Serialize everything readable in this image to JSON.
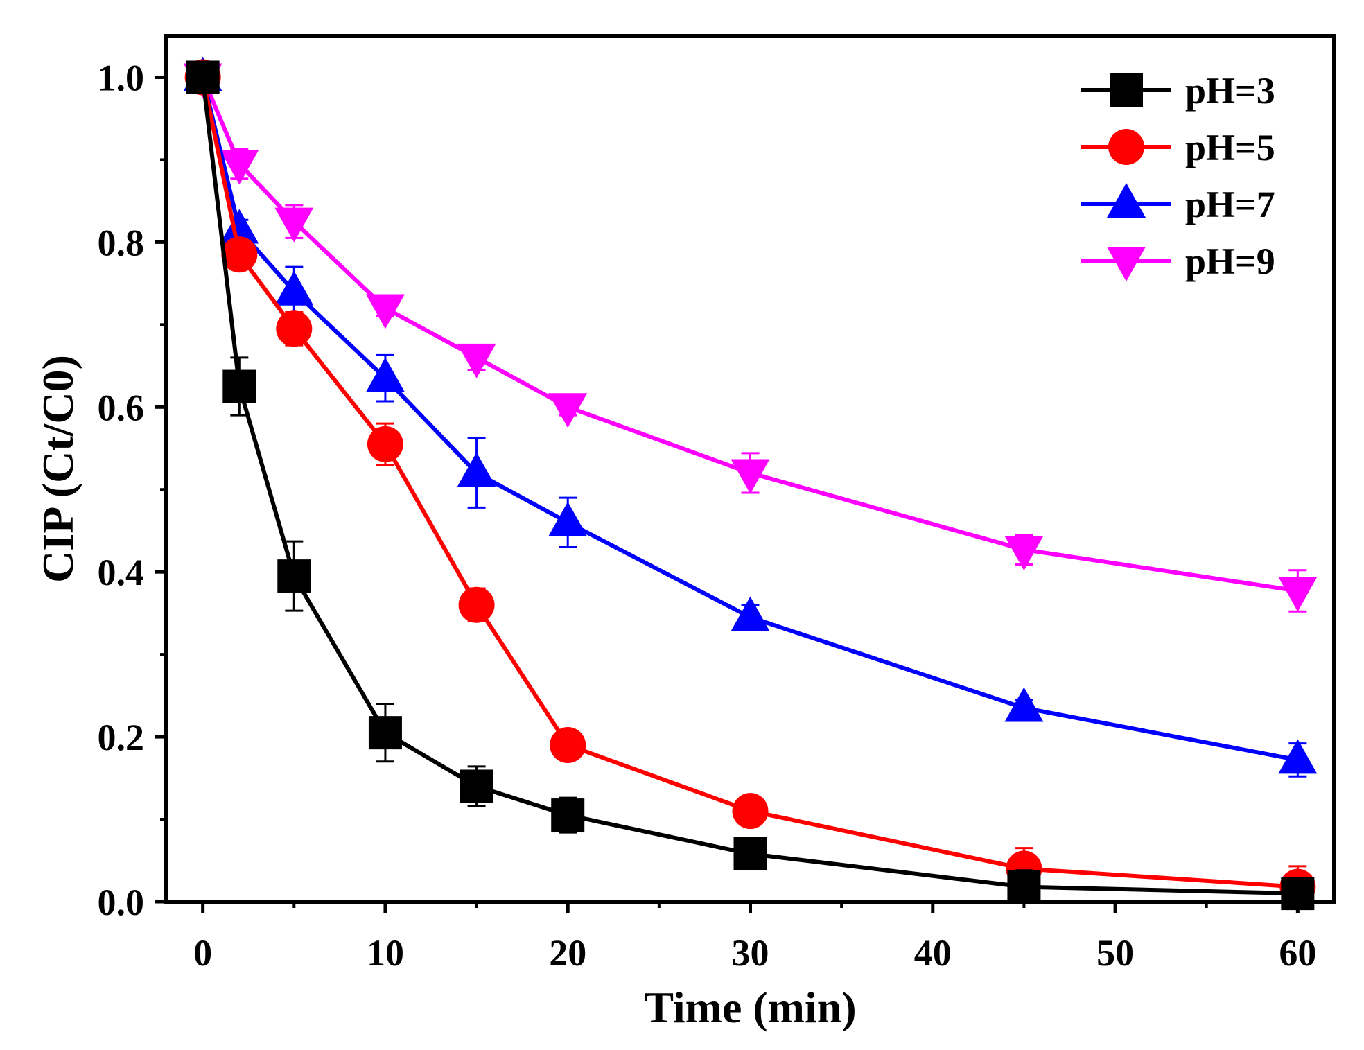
{
  "chart_data": {
    "type": "line",
    "title": "",
    "xlabel": "Time (min)",
    "ylabel": "CIP (Ct/C0)",
    "xlim": [
      -2,
      62
    ],
    "ylim": [
      0,
      1.05
    ],
    "xticks": [
      0,
      10,
      20,
      30,
      40,
      50,
      60
    ],
    "xtick_labels": [
      "0",
      "10",
      "20",
      "30",
      "40",
      "50",
      "60"
    ],
    "yticks": [
      0.0,
      0.2,
      0.4,
      0.6,
      0.8,
      1.0
    ],
    "ytick_labels": [
      "0.0",
      "0.2",
      "0.4",
      "0.6",
      "0.8",
      "1.0"
    ],
    "grid": false,
    "legend_position": "top-right",
    "x": [
      0,
      2,
      5,
      10,
      15,
      20,
      30,
      45,
      60
    ],
    "series": [
      {
        "name": "pH=3",
        "color": "#000000",
        "marker": "square",
        "values": [
          1.0,
          0.625,
          0.395,
          0.205,
          0.14,
          0.105,
          0.058,
          0.018,
          0.01
        ],
        "errors": [
          0.015,
          0.035,
          0.042,
          0.035,
          0.024,
          0.021,
          0.01,
          0.02,
          0.015
        ]
      },
      {
        "name": "pH=5",
        "color": "#ff0000",
        "marker": "circle",
        "values": [
          1.0,
          0.785,
          0.695,
          0.555,
          0.36,
          0.19,
          0.11,
          0.04,
          0.018
        ],
        "errors": [
          0.01,
          0.01,
          0.02,
          0.025,
          0.02,
          0.01,
          0.01,
          0.025,
          0.025
        ]
      },
      {
        "name": "pH=7",
        "color": "#0000ff",
        "marker": "triangle-up",
        "values": [
          1.0,
          0.815,
          0.74,
          0.635,
          0.52,
          0.46,
          0.345,
          0.235,
          0.172
        ],
        "errors": [
          0.01,
          0.012,
          0.03,
          0.028,
          0.042,
          0.03,
          0.015,
          0.01,
          0.02
        ]
      },
      {
        "name": "pH=9",
        "color": "#ff00ff",
        "marker": "triangle-down",
        "values": [
          1.0,
          0.895,
          0.825,
          0.72,
          0.66,
          0.6,
          0.52,
          0.427,
          0.377
        ],
        "errors": [
          0.012,
          0.018,
          0.02,
          0.01,
          0.015,
          0.01,
          0.024,
          0.018,
          0.025
        ]
      }
    ]
  }
}
